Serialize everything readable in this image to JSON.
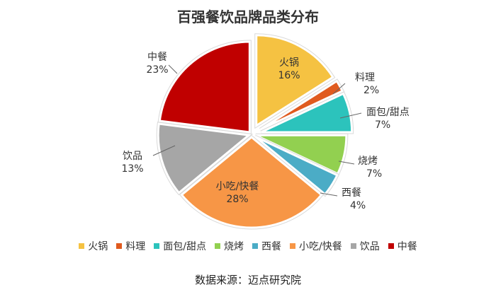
{
  "chart_data": {
    "type": "pie",
    "title": "百强餐饮品牌品类分布",
    "series": [
      {
        "name": "火锅",
        "label_name": "火锅",
        "value": 16,
        "value_label": "16%",
        "color": "#F5C242"
      },
      {
        "name": "料理",
        "label_name": "料理",
        "value": 2,
        "value_label": "2%",
        "color": "#E05A1E"
      },
      {
        "name": "面包/甜点",
        "label_name": "面包/甜点",
        "value": 7,
        "value_label": "7%",
        "color": "#2CC3BC"
      },
      {
        "name": "烧烤",
        "label_name": "烧烤",
        "value": 7,
        "value_label": "7%",
        "color": "#92D050"
      },
      {
        "name": "西餐",
        "label_name": "西餐",
        "value": 4,
        "value_label": "4%",
        "color": "#4BACC6"
      },
      {
        "name": "小吃/快餐",
        "label_name": "小吃/快餐",
        "value": 28,
        "value_label": "28%",
        "color": "#F79646"
      },
      {
        "name": "饮品",
        "label_name": "饮品",
        "value": 13,
        "value_label": "13%",
        "color": "#A6A6A6"
      },
      {
        "name": "中餐",
        "label_name": "中餐",
        "value": 23,
        "value_label": "23%",
        "color": "#C00000"
      }
    ],
    "legend_position": "bottom",
    "source": "数据来源：迈点研究院"
  }
}
